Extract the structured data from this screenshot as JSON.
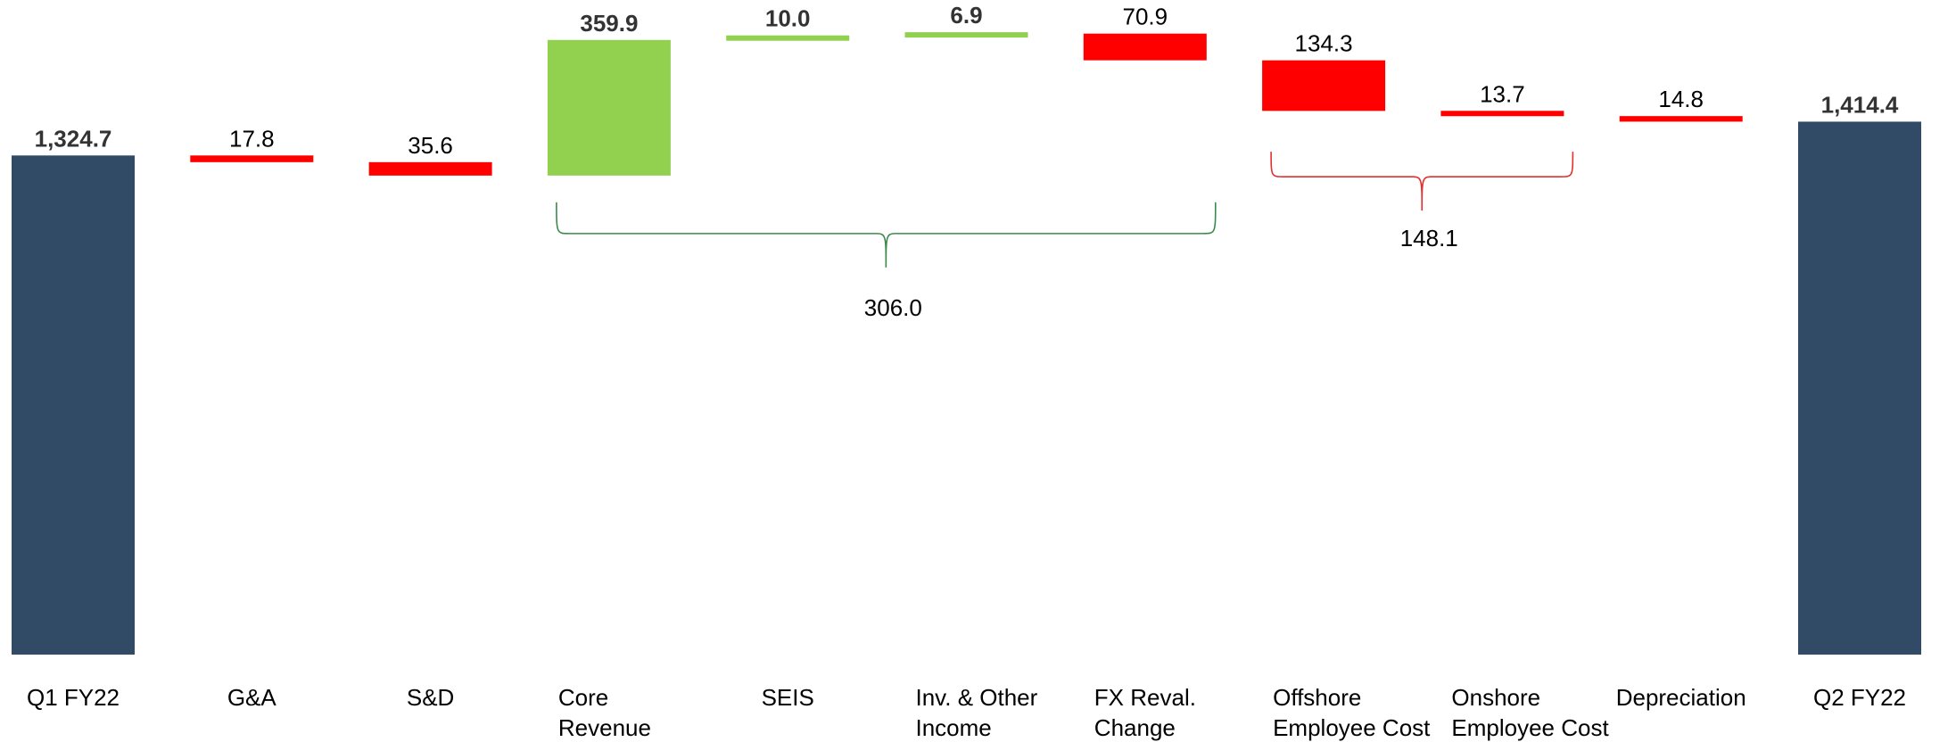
{
  "chart_data": {
    "type": "bar",
    "subtype": "waterfall",
    "categories": [
      {
        "id": "q1",
        "lines": [
          "Q1 FY22"
        ]
      },
      {
        "id": "ga",
        "lines": [
          "G&A"
        ]
      },
      {
        "id": "sd",
        "lines": [
          "S&D"
        ]
      },
      {
        "id": "core",
        "lines": [
          "Core",
          "Revenue"
        ]
      },
      {
        "id": "seis",
        "lines": [
          "SEIS"
        ]
      },
      {
        "id": "inv",
        "lines": [
          "Inv. & Other",
          "Income"
        ]
      },
      {
        "id": "fx",
        "lines": [
          "FX Reval.",
          "Change"
        ]
      },
      {
        "id": "offshore",
        "lines": [
          "Offshore",
          "Employee Cost"
        ]
      },
      {
        "id": "onshore",
        "lines": [
          "Onshore",
          "Employee Cost"
        ]
      },
      {
        "id": "dep",
        "lines": [
          "Depreciation"
        ]
      },
      {
        "id": "q2",
        "lines": [
          "Q2 FY22"
        ]
      }
    ],
    "steps": [
      {
        "kind": "total",
        "value": 1324.7,
        "label": "1,324.7"
      },
      {
        "kind": "decrease",
        "value": 17.8,
        "label": "17.8"
      },
      {
        "kind": "decrease",
        "value": 35.6,
        "label": "35.6"
      },
      {
        "kind": "increase",
        "value": 359.9,
        "label": "359.9"
      },
      {
        "kind": "increase",
        "value": 10.0,
        "label": "10.0"
      },
      {
        "kind": "increase",
        "value": 6.9,
        "label": "6.9"
      },
      {
        "kind": "decrease",
        "value": 70.9,
        "label": "70.9"
      },
      {
        "kind": "decrease",
        "value": 134.3,
        "label": "134.3"
      },
      {
        "kind": "decrease",
        "value": 13.7,
        "label": "13.7"
      },
      {
        "kind": "decrease",
        "value": 14.8,
        "label": "14.8"
      },
      {
        "kind": "total",
        "value": 1414.4,
        "label": "1,414.4"
      }
    ],
    "groups": [
      {
        "from": 3,
        "to": 6,
        "value": 306.0,
        "label": "306.0",
        "color": "#3a8a4a"
      },
      {
        "from": 7,
        "to": 8,
        "value": 148.1,
        "label": "148.1",
        "color": "#e23030"
      }
    ],
    "colors": {
      "total": "#314b66",
      "increase": "#92d050",
      "decrease": "#ff0000"
    },
    "ylim": [
      0,
      1640
    ],
    "title": "",
    "xlabel": "",
    "ylabel": ""
  }
}
